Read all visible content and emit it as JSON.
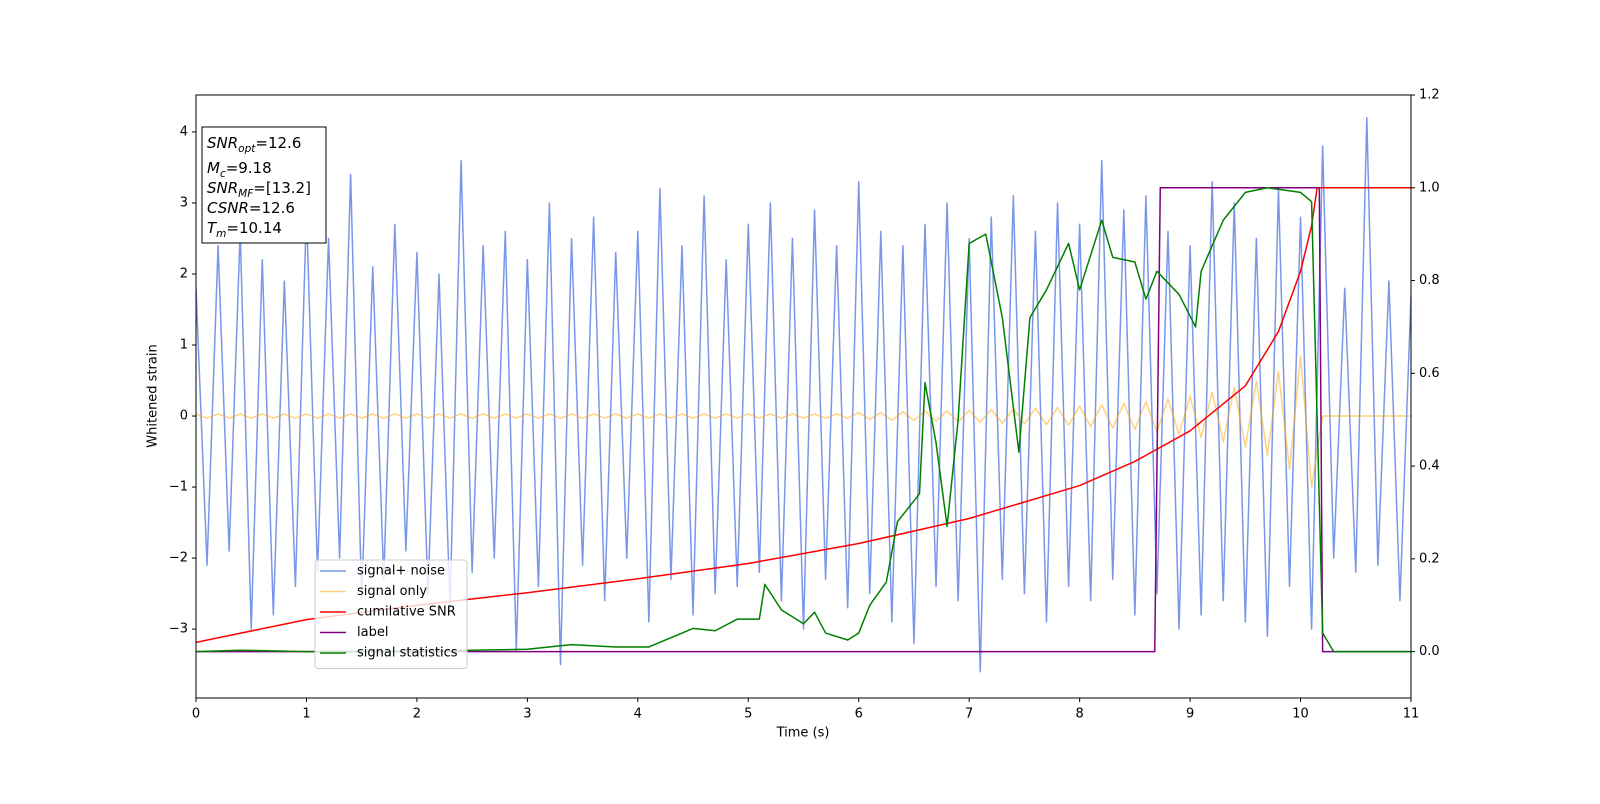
{
  "chart_data": {
    "type": "line",
    "xlabel": "Time (s)",
    "ylabel": "Whitened strain",
    "xlim": [
      0,
      11
    ],
    "xticks": [
      0,
      1,
      2,
      3,
      4,
      5,
      6,
      7,
      8,
      9,
      10,
      11
    ],
    "ylim": [
      -3.97,
      4.52
    ],
    "yticks": [
      {
        "value": -3,
        "label": "−3"
      },
      {
        "value": -2,
        "label": "−2"
      },
      {
        "value": -1,
        "label": "−1"
      },
      0,
      1,
      2,
      3,
      4
    ],
    "y2lim": [
      -0.1,
      1.2
    ],
    "y2ticks": [
      {
        "value": 0,
        "label": "0.0"
      },
      0.2,
      0.4,
      0.6,
      0.8,
      {
        "value": 1,
        "label": "1.0"
      },
      1.2
    ],
    "legend_loc": "lower left",
    "annotations": [
      {
        "text": "SNR",
        "sub": "opt",
        "rest": "=12.6"
      },
      {
        "text": "M",
        "sub": "c",
        "rest": "=9.18"
      },
      {
        "text": "SNR",
        "sub": "MF",
        "rest": "=[13.2]"
      },
      {
        "text": "CSNR",
        "rest": "=12.6"
      },
      {
        "text": "T",
        "sub": "m",
        "rest": "=10.14"
      }
    ],
    "x": [
      0,
      0.1,
      0.2,
      0.3,
      0.4,
      0.5,
      0.6,
      0.7,
      0.8,
      0.9,
      1,
      1.1,
      1.2,
      1.3,
      1.4,
      1.5,
      1.6,
      1.7,
      1.8,
      1.9,
      2,
      2.1,
      2.2,
      2.3,
      2.4,
      2.5,
      2.6,
      2.7,
      2.8,
      2.9,
      3,
      3.1,
      3.2,
      3.3,
      3.4,
      3.5,
      3.6,
      3.7,
      3.8,
      3.9,
      4,
      4.1,
      4.2,
      4.3,
      4.4,
      4.5,
      4.6,
      4.7,
      4.8,
      4.9,
      5,
      5.1,
      5.2,
      5.3,
      5.4,
      5.5,
      5.6,
      5.7,
      5.8,
      5.9,
      6,
      6.1,
      6.2,
      6.3,
      6.4,
      6.5,
      6.6,
      6.7,
      6.8,
      6.9,
      7,
      7.1,
      7.2,
      7.3,
      7.4,
      7.5,
      7.6,
      7.7,
      7.8,
      7.9,
      8,
      8.1,
      8.2,
      8.3,
      8.4,
      8.5,
      8.6,
      8.7,
      8.8,
      8.9,
      9,
      9.1,
      9.2,
      9.3,
      9.4,
      9.5,
      9.6,
      9.7,
      9.8,
      9.9,
      10,
      10.1,
      10.2,
      10.3,
      10.4,
      10.5,
      10.6,
      10.7,
      10.8,
      10.9,
      11
    ],
    "series": [
      {
        "name": "signal+ noise",
        "color": "#4169e1",
        "opacity": 0.7,
        "axis": "y",
        "values": [
          1.8,
          -2.1,
          2.4,
          -1.9,
          2.6,
          -3.0,
          2.2,
          -2.8,
          1.9,
          -2.4,
          2.9,
          -2.2,
          2.5,
          -2.0,
          3.4,
          -2.6,
          2.1,
          -2.3,
          2.7,
          -1.9,
          2.3,
          -2.5,
          2.0,
          -2.7,
          3.6,
          -2.2,
          2.4,
          -2.0,
          2.6,
          -3.3,
          2.2,
          -2.4,
          3.0,
          -3.5,
          2.5,
          -2.1,
          2.8,
          -2.6,
          2.3,
          -2.0,
          2.6,
          -2.9,
          3.2,
          -2.3,
          2.4,
          -2.8,
          3.1,
          -2.5,
          2.2,
          -2.4,
          2.7,
          -2.2,
          3.0,
          -2.6,
          2.5,
          -3.0,
          2.9,
          -2.3,
          2.4,
          -2.7,
          3.3,
          -2.5,
          2.6,
          -2.9,
          2.4,
          -3.2,
          2.7,
          -2.4,
          3.0,
          -2.6,
          2.5,
          -3.6,
          2.8,
          -2.3,
          3.1,
          -2.5,
          2.6,
          -2.9,
          3.0,
          -2.4,
          2.7,
          -2.6,
          3.6,
          -2.3,
          2.9,
          -2.8,
          3.1,
          -2.5,
          2.6,
          -3.0,
          2.4,
          -2.8,
          3.3,
          -2.6,
          3.0,
          -2.9,
          2.5,
          -3.1,
          3.2,
          -2.4,
          2.8,
          -3.0,
          3.8,
          -2.0,
          1.8,
          -2.2,
          4.2,
          -2.1,
          1.9,
          -2.6,
          1.7
        ]
      },
      {
        "name": "signal only",
        "color": "#ffa500",
        "opacity": 0.5,
        "axis": "y",
        "values": [
          0.03,
          -0.03,
          0.03,
          -0.03,
          0.03,
          -0.03,
          0.03,
          -0.03,
          0.03,
          -0.03,
          0.03,
          -0.03,
          0.03,
          -0.03,
          0.03,
          -0.03,
          0.03,
          -0.03,
          0.03,
          -0.03,
          0.03,
          -0.03,
          0.03,
          -0.03,
          0.03,
          -0.03,
          0.03,
          -0.03,
          0.03,
          -0.03,
          0.03,
          -0.03,
          0.03,
          -0.03,
          0.03,
          -0.03,
          0.03,
          -0.03,
          0.03,
          -0.03,
          0.03,
          -0.03,
          0.03,
          -0.03,
          0.03,
          -0.03,
          0.03,
          -0.03,
          0.03,
          -0.03,
          0.03,
          -0.03,
          0.03,
          -0.03,
          0.03,
          -0.03,
          0.03,
          -0.03,
          0.03,
          -0.03,
          0.05,
          -0.05,
          0.05,
          -0.06,
          0.06,
          -0.06,
          0.07,
          -0.07,
          0.07,
          -0.08,
          0.08,
          -0.09,
          0.09,
          -0.1,
          0.1,
          -0.11,
          0.11,
          -0.12,
          0.12,
          -0.13,
          0.14,
          -0.15,
          0.16,
          -0.17,
          0.18,
          -0.19,
          0.2,
          -0.22,
          0.24,
          -0.26,
          0.28,
          -0.3,
          0.33,
          -0.36,
          0.4,
          -0.44,
          0.49,
          -0.55,
          0.63,
          -0.75,
          0.85,
          -1.0,
          0,
          0,
          0,
          0,
          0,
          0,
          0,
          0,
          0
        ]
      },
      {
        "name": "cumilative SNR",
        "color": "#ff0000",
        "axis": "y2",
        "x": [
          0,
          1,
          2,
          3,
          4,
          5,
          6,
          7,
          8,
          8.5,
          9,
          9.5,
          9.8,
          10,
          10.1,
          10.15,
          11
        ],
        "values": [
          0.02,
          0.069,
          0.1,
          0.127,
          0.157,
          0.19,
          0.233,
          0.287,
          0.358,
          0.41,
          0.476,
          0.573,
          0.69,
          0.82,
          0.918,
          1.0,
          1.0
        ]
      },
      {
        "name": "label",
        "color": "#800080",
        "axis": "y2",
        "x": [
          0,
          8.68,
          8.73,
          10.17,
          10.2,
          11
        ],
        "values": [
          0,
          0,
          1,
          1,
          0,
          0
        ]
      },
      {
        "name": "signal statistics",
        "color": "#008000",
        "axis": "y2",
        "x": [
          0,
          0.4,
          1,
          2,
          3,
          3.4,
          3.8,
          4.1,
          4.3,
          4.5,
          4.7,
          4.9,
          5.1,
          5.15,
          5.3,
          5.5,
          5.6,
          5.7,
          5.9,
          6.0,
          6.1,
          6.25,
          6.35,
          6.45,
          6.55,
          6.6,
          6.7,
          6.8,
          6.9,
          7.0,
          7.15,
          7.3,
          7.45,
          7.55,
          7.7,
          7.9,
          8.0,
          8.2,
          8.3,
          8.5,
          8.6,
          8.7,
          8.9,
          9.05,
          9.1,
          9.3,
          9.5,
          9.7,
          10.0,
          10.1,
          10.2,
          10.3,
          11
        ],
        "values": [
          0,
          0.003,
          0,
          0.001,
          0.005,
          0.015,
          0.01,
          0.01,
          0.03,
          0.05,
          0.045,
          0.07,
          0.07,
          0.145,
          0.09,
          0.06,
          0.085,
          0.04,
          0.025,
          0.04,
          0.1,
          0.15,
          0.28,
          0.31,
          0.34,
          0.58,
          0.45,
          0.27,
          0.5,
          0.88,
          0.9,
          0.72,
          0.43,
          0.72,
          0.78,
          0.88,
          0.78,
          0.93,
          0.85,
          0.84,
          0.76,
          0.82,
          0.77,
          0.7,
          0.82,
          0.93,
          0.99,
          1.0,
          0.99,
          0.97,
          0.04,
          0.0,
          0
        ]
      }
    ]
  }
}
